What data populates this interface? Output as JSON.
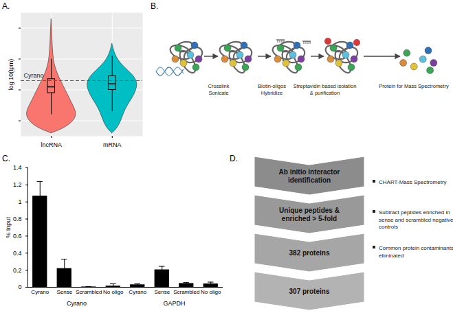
{
  "chart_data": [
    {
      "panel": "A.",
      "type": "violin",
      "ylabel": "log 10(tpm)",
      "categories": [
        "lncRNA",
        "mRNA"
      ],
      "colors": [
        "#f8766d",
        "#00bfc4"
      ],
      "profiles": [
        {
          "y": [
            -2.8,
            -2.5,
            -2,
            -1.5,
            -1,
            -0.5,
            0,
            0.5,
            1,
            1.5,
            2,
            3,
            4,
            4.6
          ],
          "density": [
            0,
            0.5,
            0.9,
            1,
            0.85,
            0.7,
            0.55,
            0.4,
            0.25,
            0.15,
            0.08,
            0.04,
            0.02,
            0
          ]
        },
        {
          "y": [
            -2.8,
            -2.5,
            -2,
            -1.5,
            -1,
            -0.5,
            0,
            0.5,
            1,
            1.5,
            2,
            2.5,
            3
          ],
          "density": [
            0,
            0.2,
            0.35,
            0.45,
            0.6,
            0.8,
            0.95,
            1,
            0.8,
            0.45,
            0.2,
            0.07,
            0
          ]
        }
      ],
      "box": [
        {
          "whisker_low": -1.6,
          "q1": -0.2,
          "median": 0.2,
          "q3": 0.7,
          "whisker_high": 2.0
        },
        {
          "whisker_low": -1.4,
          "q1": 0,
          "median": 0.4,
          "q3": 0.9,
          "whisker_high": 2.2
        }
      ],
      "reference_line": {
        "label": "Cyrano",
        "value": 0.6
      },
      "ylim": [
        -3,
        5
      ],
      "yticks": [
        -2,
        0,
        2,
        4
      ],
      "grid": true,
      "tick_labels": "x"
    },
    {
      "panel": "C.",
      "type": "bar",
      "ylabel": "% Input",
      "categories": [
        "Cyrano",
        "Sense",
        "Scrambled",
        "No oligo",
        "Cyrano",
        "Sense",
        "Scrambled",
        "No oligo"
      ],
      "groups": [
        "Cyrano",
        "Cyrano",
        "Cyrano",
        "Cyrano",
        "GAPDH",
        "GAPDH",
        "GAPDH",
        "GAPDH"
      ],
      "values": [
        1.07,
        0.22,
        0.005,
        0.015,
        0.03,
        0.205,
        0.045,
        0.04
      ],
      "errors": [
        0.17,
        0.11,
        0.003,
        0.025,
        0.01,
        0.04,
        0.01,
        0.02
      ],
      "color": "#000000",
      "ylim": [
        0,
        1.4
      ],
      "yticks": [
        0,
        0.2,
        0.4,
        0.6,
        0.8,
        1,
        1.2,
        1.4
      ]
    }
  ],
  "diagrams": [
    {
      "panel": "B.",
      "steps": [
        [
          "Crosslink",
          "Sonicate"
        ],
        [
          "Biotin-oligos",
          "Hybridize"
        ],
        [
          "Streptavidin based isolation",
          "& purification"
        ],
        [
          "Protein for Mass Spectrometry"
        ]
      ]
    },
    {
      "panel": "D.",
      "stages": [
        [
          "Ab initio interactor",
          "identification"
        ],
        [
          "Unique peptides &",
          "enriched > 5-fold"
        ],
        [
          "382 proteins"
        ],
        [
          "307 proteins"
        ]
      ],
      "notes": [
        [
          "CHART-Mass Spectrometry"
        ],
        [
          "Subtract peptides enriched in",
          "sense and scrambled negative",
          "controls"
        ],
        [
          "Common protein contaminants",
          "eliminated"
        ]
      ]
    }
  ]
}
